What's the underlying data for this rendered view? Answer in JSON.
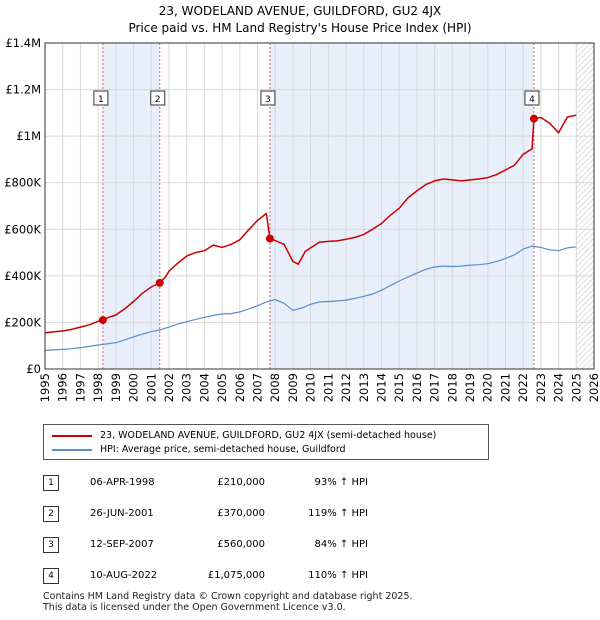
{
  "title": {
    "line1": "23, WODELAND AVENUE, GUILDFORD, GU2 4JX",
    "line2": "Price paid vs. HM Land Registry's House Price Index (HPI)"
  },
  "legend": {
    "property": "23, WODELAND AVENUE, GUILDFORD, GU2 4JX (semi-detached house)",
    "hpi": "HPI: Average price, semi-detached house, Guildford"
  },
  "colors": {
    "property": "#cc0000",
    "hpi": "#5b8ec9",
    "shade": "#e8eefa",
    "vline": "#e06060"
  },
  "transactions": [
    {
      "num": "1",
      "date": "06-APR-1998",
      "price": "£210,000",
      "hpi_change": "93% ↑ HPI"
    },
    {
      "num": "2",
      "date": "26-JUN-2001",
      "price": "£370,000",
      "hpi_change": "119% ↑ HPI"
    },
    {
      "num": "3",
      "date": "12-SEP-2007",
      "price": "£560,000",
      "hpi_change": "84% ↑ HPI"
    },
    {
      "num": "4",
      "date": "10-AUG-2022",
      "price": "£1,075,000",
      "hpi_change": "110% ↑ HPI"
    }
  ],
  "footer": {
    "line1": "Contains HM Land Registry data © Crown copyright and database right 2025.",
    "line2": "This data is licensed under the Open Government Licence v3.0."
  },
  "chart_data": {
    "type": "line",
    "title": "23, WODELAND AVENUE, GUILDFORD, GU2 4JX",
    "xlabel": "",
    "ylabel": "",
    "xlim": [
      1995,
      2026
    ],
    "ylim": [
      0,
      1400000
    ],
    "x_ticks": [
      1995,
      1996,
      1997,
      1998,
      1999,
      2000,
      2001,
      2002,
      2003,
      2004,
      2005,
      2006,
      2007,
      2008,
      2009,
      2010,
      2011,
      2012,
      2013,
      2014,
      2015,
      2016,
      2017,
      2018,
      2019,
      2020,
      2021,
      2022,
      2023,
      2024,
      2025,
      2026
    ],
    "y_ticks": [
      0,
      200000,
      400000,
      600000,
      800000,
      1000000,
      1200000,
      1400000
    ],
    "y_tick_labels": [
      "£0",
      "£200K",
      "£400K",
      "£600K",
      "£800K",
      "£1M",
      "£1.2M",
      "£1.4M"
    ],
    "grid": true,
    "shaded_ranges": [
      [
        1998.27,
        2001.48
      ],
      [
        2007.7,
        2022.6
      ]
    ],
    "hatched_after": 2025.0,
    "sales": [
      {
        "label": "1",
        "x": 1998.27,
        "y": 210000
      },
      {
        "label": "2",
        "x": 2001.48,
        "y": 370000
      },
      {
        "label": "3",
        "x": 2007.7,
        "y": 560000
      },
      {
        "label": "4",
        "x": 2022.61,
        "y": 1075000
      }
    ],
    "series": [
      {
        "name": "23, WODELAND AVENUE, GUILDFORD, GU2 4JX (semi-detached house)",
        "x": [
          1995,
          1995.5,
          1996,
          1996.5,
          1997,
          1997.5,
          1998,
          1998.27,
          1998.6,
          1999,
          1999.5,
          2000,
          2000.5,
          2001,
          2001.48,
          2001.8,
          2002,
          2002.5,
          2003,
          2003.5,
          2004,
          2004.5,
          2005,
          2005.5,
          2006,
          2006.5,
          2007,
          2007.5,
          2007.7,
          2008,
          2008.5,
          2009,
          2009.3,
          2009.7,
          2010,
          2010.5,
          2011,
          2011.5,
          2012,
          2012.5,
          2013,
          2013.5,
          2014,
          2014.5,
          2015,
          2015.5,
          2016,
          2016.5,
          2017,
          2017.5,
          2018,
          2018.5,
          2019,
          2019.5,
          2020,
          2020.5,
          2021,
          2021.5,
          2022,
          2022.5,
          2022.61,
          2023,
          2023.5,
          2024,
          2024.5,
          2025
        ],
        "values": [
          155000,
          160000,
          163000,
          170000,
          180000,
          190000,
          205000,
          210000,
          222000,
          232000,
          258000,
          290000,
          325000,
          352000,
          370000,
          395000,
          420000,
          455000,
          485000,
          500000,
          508000,
          532000,
          522000,
          535000,
          555000,
          598000,
          638000,
          668000,
          560000,
          552000,
          535000,
          462000,
          450000,
          505000,
          520000,
          545000,
          548000,
          550000,
          557000,
          565000,
          578000,
          600000,
          625000,
          660000,
          690000,
          735000,
          765000,
          792000,
          808000,
          816000,
          812000,
          808000,
          812000,
          816000,
          822000,
          835000,
          855000,
          875000,
          922000,
          945000,
          1075000,
          1080000,
          1055000,
          1015000,
          1082000,
          1090000
        ]
      },
      {
        "name": "HPI: Average price, semi-detached house, Guildford",
        "x": [
          1995,
          1995.5,
          1996,
          1996.5,
          1997,
          1997.5,
          1998,
          1998.5,
          1999,
          1999.5,
          2000,
          2000.5,
          2001,
          2001.5,
          2002,
          2002.5,
          2003,
          2003.5,
          2004,
          2004.5,
          2005,
          2005.5,
          2006,
          2006.5,
          2007,
          2007.5,
          2008,
          2008.5,
          2009,
          2009.5,
          2010,
          2010.5,
          2011,
          2011.5,
          2012,
          2012.5,
          2013,
          2013.5,
          2014,
          2014.5,
          2015,
          2015.5,
          2016,
          2016.5,
          2017,
          2017.5,
          2018,
          2018.5,
          2019,
          2019.5,
          2020,
          2020.5,
          2021,
          2021.5,
          2022,
          2022.5,
          2023,
          2023.5,
          2024,
          2024.5,
          2025
        ],
        "values": [
          80000,
          82000,
          84000,
          87000,
          92000,
          97000,
          103000,
          108000,
          113000,
          125000,
          138000,
          150000,
          160000,
          168000,
          180000,
          193000,
          203000,
          213000,
          222000,
          230000,
          236000,
          238000,
          245000,
          258000,
          272000,
          288000,
          298000,
          282000,
          252000,
          262000,
          278000,
          288000,
          290000,
          292000,
          296000,
          303000,
          312000,
          322000,
          338000,
          358000,
          378000,
          395000,
          412000,
          428000,
          438000,
          442000,
          440000,
          442000,
          446000,
          448000,
          452000,
          462000,
          475000,
          490000,
          515000,
          528000,
          522000,
          512000,
          508000,
          520000,
          525000
        ]
      }
    ]
  }
}
